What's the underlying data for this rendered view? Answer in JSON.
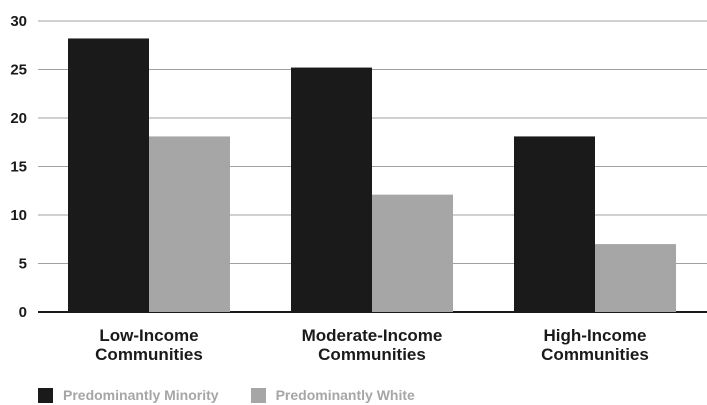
{
  "chart_data": {
    "type": "bar",
    "title": "",
    "xlabel": "",
    "ylabel": "",
    "categories": [
      [
        "Low-Income",
        "Communities"
      ],
      [
        "Moderate-Income",
        "Communities"
      ],
      [
        "High-Income",
        "Communities"
      ]
    ],
    "series": [
      {
        "name": "Predominantly Minority",
        "values": [
          28.2,
          25.2,
          18.1
        ],
        "color": "#1a1a1a"
      },
      {
        "name": "Predominantly White",
        "values": [
          18.1,
          12.1,
          7.0
        ],
        "color": "#a6a6a6"
      }
    ],
    "ylim": [
      0,
      30
    ],
    "yticks": [
      "0",
      "5",
      "10",
      "15",
      "20",
      "25",
      "30"
    ],
    "grid": true,
    "legend_position": "bottom-left"
  }
}
